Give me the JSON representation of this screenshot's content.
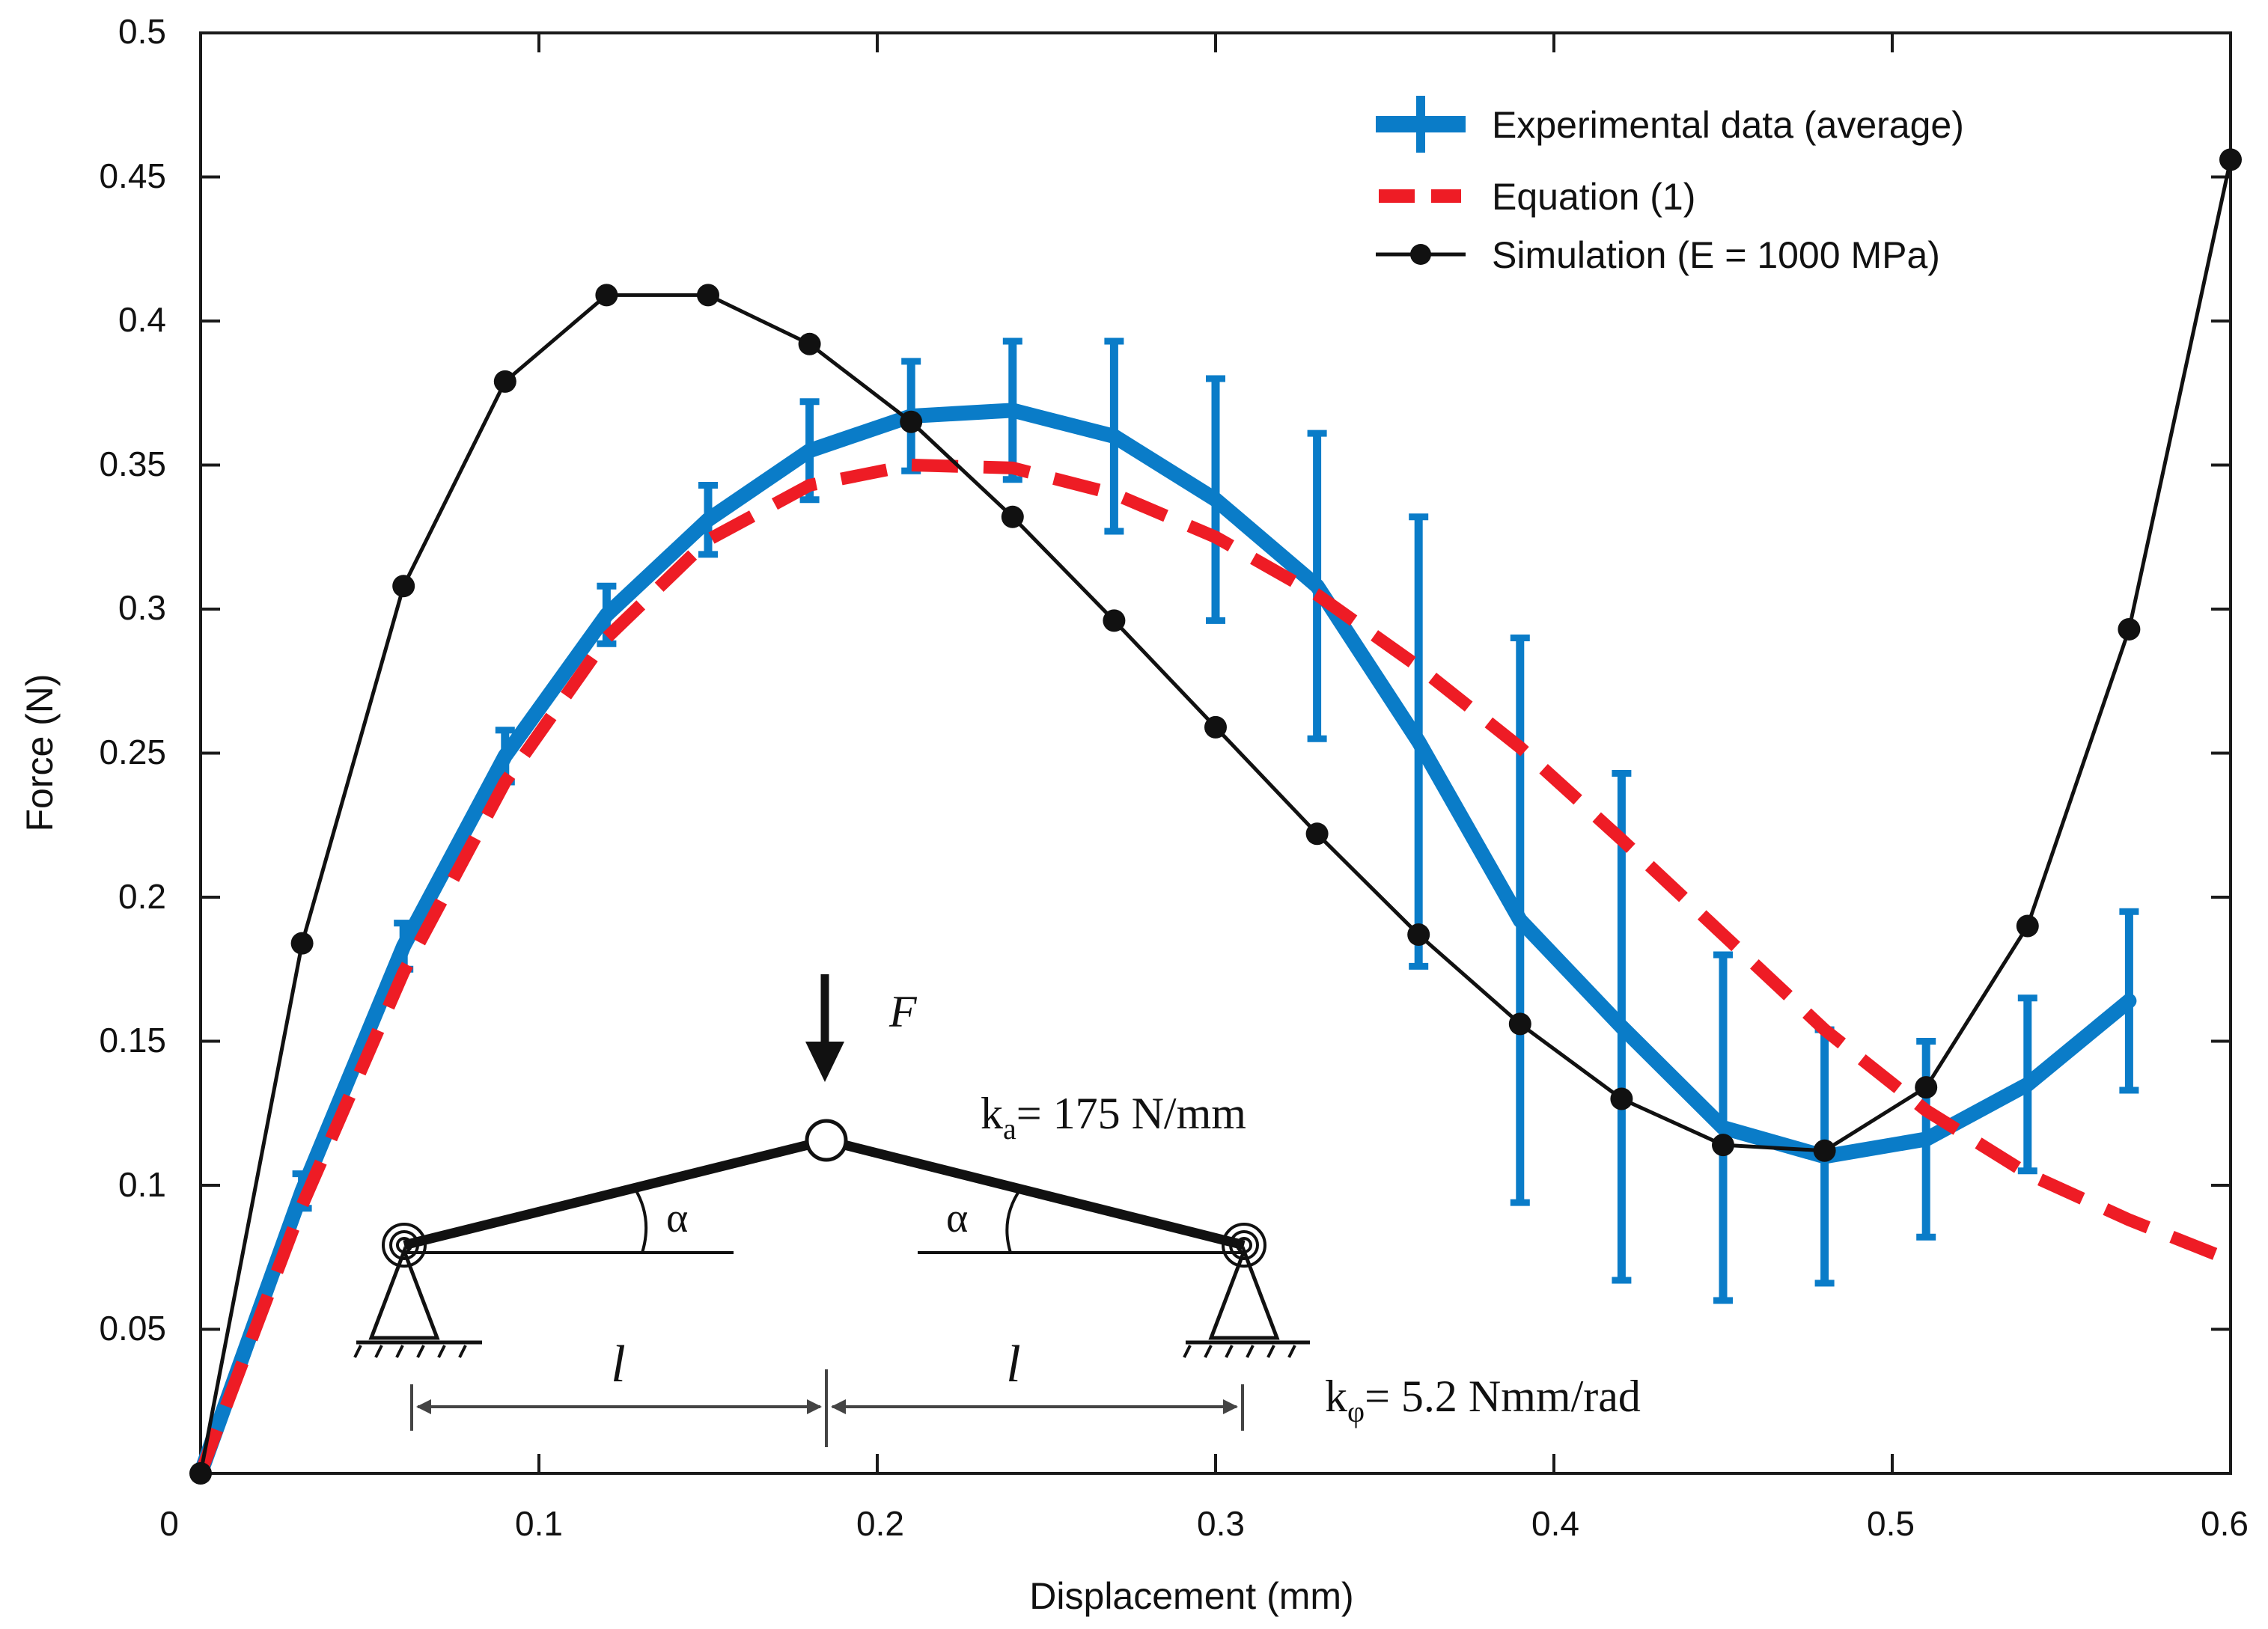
{
  "chart_data": {
    "type": "line",
    "title": "",
    "xlabel": "Displacement (mm)",
    "ylabel": "Force (N)",
    "xlim": [
      0,
      0.6
    ],
    "ylim": [
      0,
      0.5
    ],
    "x_ticks": [
      0,
      0.1,
      0.2,
      0.3,
      0.4,
      0.5,
      0.6
    ],
    "x_tick_labels": [
      "0",
      "0.1",
      "0.2",
      "0.3",
      "0.4",
      "0.5",
      "0.6"
    ],
    "y_ticks": [
      0.05,
      0.1,
      0.15,
      0.2,
      0.25,
      0.3,
      0.35,
      0.4,
      0.45,
      0.5
    ],
    "y_tick_labels": [
      "0.05",
      "0.1",
      "0.15",
      "0.2",
      "0.25",
      "0.3",
      "0.35",
      "0.4",
      "0.45",
      "0.5"
    ],
    "legend_position": "top-right",
    "series": [
      {
        "name": "Experimental data (average)",
        "style": "errorbar",
        "color": "#0a7cc8",
        "x": [
          0,
          0.03,
          0.06,
          0.09,
          0.12,
          0.15,
          0.18,
          0.21,
          0.24,
          0.27,
          0.3,
          0.33,
          0.36,
          0.39,
          0.42,
          0.45,
          0.48,
          0.51,
          0.54,
          0.57
        ],
        "y": [
          0,
          0.098,
          0.183,
          0.249,
          0.298,
          0.331,
          0.355,
          0.367,
          0.369,
          0.36,
          0.338,
          0.308,
          0.254,
          0.192,
          0.155,
          0.12,
          0.11,
          0.116,
          0.135,
          0.164
        ],
        "err": [
          0,
          0.006,
          0.008,
          0.009,
          0.01,
          0.012,
          0.017,
          0.019,
          0.024,
          0.033,
          0.042,
          0.053,
          0.078,
          0.098,
          0.088,
          0.06,
          0.044,
          0.034,
          0.03,
          0.031
        ]
      },
      {
        "name": "Equation (1)",
        "style": "dashed",
        "color": "#ee1c25",
        "x": [
          0,
          0.03,
          0.06,
          0.09,
          0.12,
          0.15,
          0.18,
          0.21,
          0.24,
          0.27,
          0.3,
          0.33,
          0.36,
          0.39,
          0.42,
          0.45,
          0.48,
          0.51,
          0.54,
          0.57,
          0.6
        ],
        "y": [
          0,
          0.093,
          0.174,
          0.24,
          0.29,
          0.324,
          0.343,
          0.35,
          0.349,
          0.34,
          0.325,
          0.305,
          0.28,
          0.252,
          0.22,
          0.187,
          0.154,
          0.126,
          0.104,
          0.088,
          0.074
        ]
      },
      {
        "name": "Simulation (E = 1000 MPa)",
        "style": "line-marker",
        "color": "#111111",
        "x": [
          0,
          0.03,
          0.06,
          0.09,
          0.12,
          0.15,
          0.18,
          0.21,
          0.24,
          0.27,
          0.3,
          0.33,
          0.36,
          0.39,
          0.42,
          0.45,
          0.48,
          0.51,
          0.54,
          0.57,
          0.6
        ],
        "y": [
          0,
          0.184,
          0.308,
          0.379,
          0.409,
          0.409,
          0.392,
          0.365,
          0.332,
          0.296,
          0.259,
          0.222,
          0.187,
          0.156,
          0.13,
          0.114,
          0.112,
          0.134,
          0.19,
          0.293,
          0.456
        ]
      }
    ],
    "inset": {
      "force_label": "F",
      "angle_label": "α",
      "length_label": "l",
      "ka_prefix": "k",
      "ka_sub": "a",
      "ka_value": "= 175 N/mm",
      "kphi_prefix": "k",
      "kphi_sub": "φ",
      "kphi_value": "= 5.2 Nmm/rad"
    }
  }
}
